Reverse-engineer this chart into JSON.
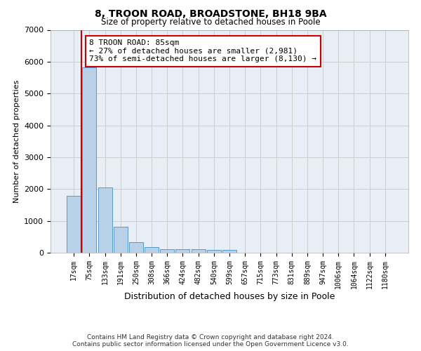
{
  "title1": "8, TROON ROAD, BROADSTONE, BH18 9BA",
  "title2": "Size of property relative to detached houses in Poole",
  "xlabel": "Distribution of detached houses by size in Poole",
  "ylabel": "Number of detached properties",
  "bar_labels": [
    "17sqm",
    "75sqm",
    "133sqm",
    "191sqm",
    "250sqm",
    "308sqm",
    "366sqm",
    "424sqm",
    "482sqm",
    "540sqm",
    "599sqm",
    "657sqm",
    "715sqm",
    "773sqm",
    "831sqm",
    "889sqm",
    "947sqm",
    "1006sqm",
    "1064sqm",
    "1122sqm",
    "1180sqm"
  ],
  "bar_values": [
    1780,
    5820,
    2060,
    820,
    340,
    185,
    115,
    105,
    105,
    80,
    80,
    0,
    0,
    0,
    0,
    0,
    0,
    0,
    0,
    0,
    0
  ],
  "bar_color": "#b8d0e8",
  "bar_edge_color": "#5599cc",
  "vline_color": "#cc0000",
  "annotation_text": "8 TROON ROAD: 85sqm\n← 27% of detached houses are smaller (2,981)\n73% of semi-detached houses are larger (8,130) →",
  "annotation_box_color": "#ffffff",
  "annotation_box_edge": "#cc0000",
  "ylim": [
    0,
    7000
  ],
  "yticks": [
    0,
    1000,
    2000,
    3000,
    4000,
    5000,
    6000,
    7000
  ],
  "footer1": "Contains HM Land Registry data © Crown copyright and database right 2024.",
  "footer2": "Contains public sector information licensed under the Open Government Licence v3.0.",
  "plot_bg_color": "#e8eef5"
}
